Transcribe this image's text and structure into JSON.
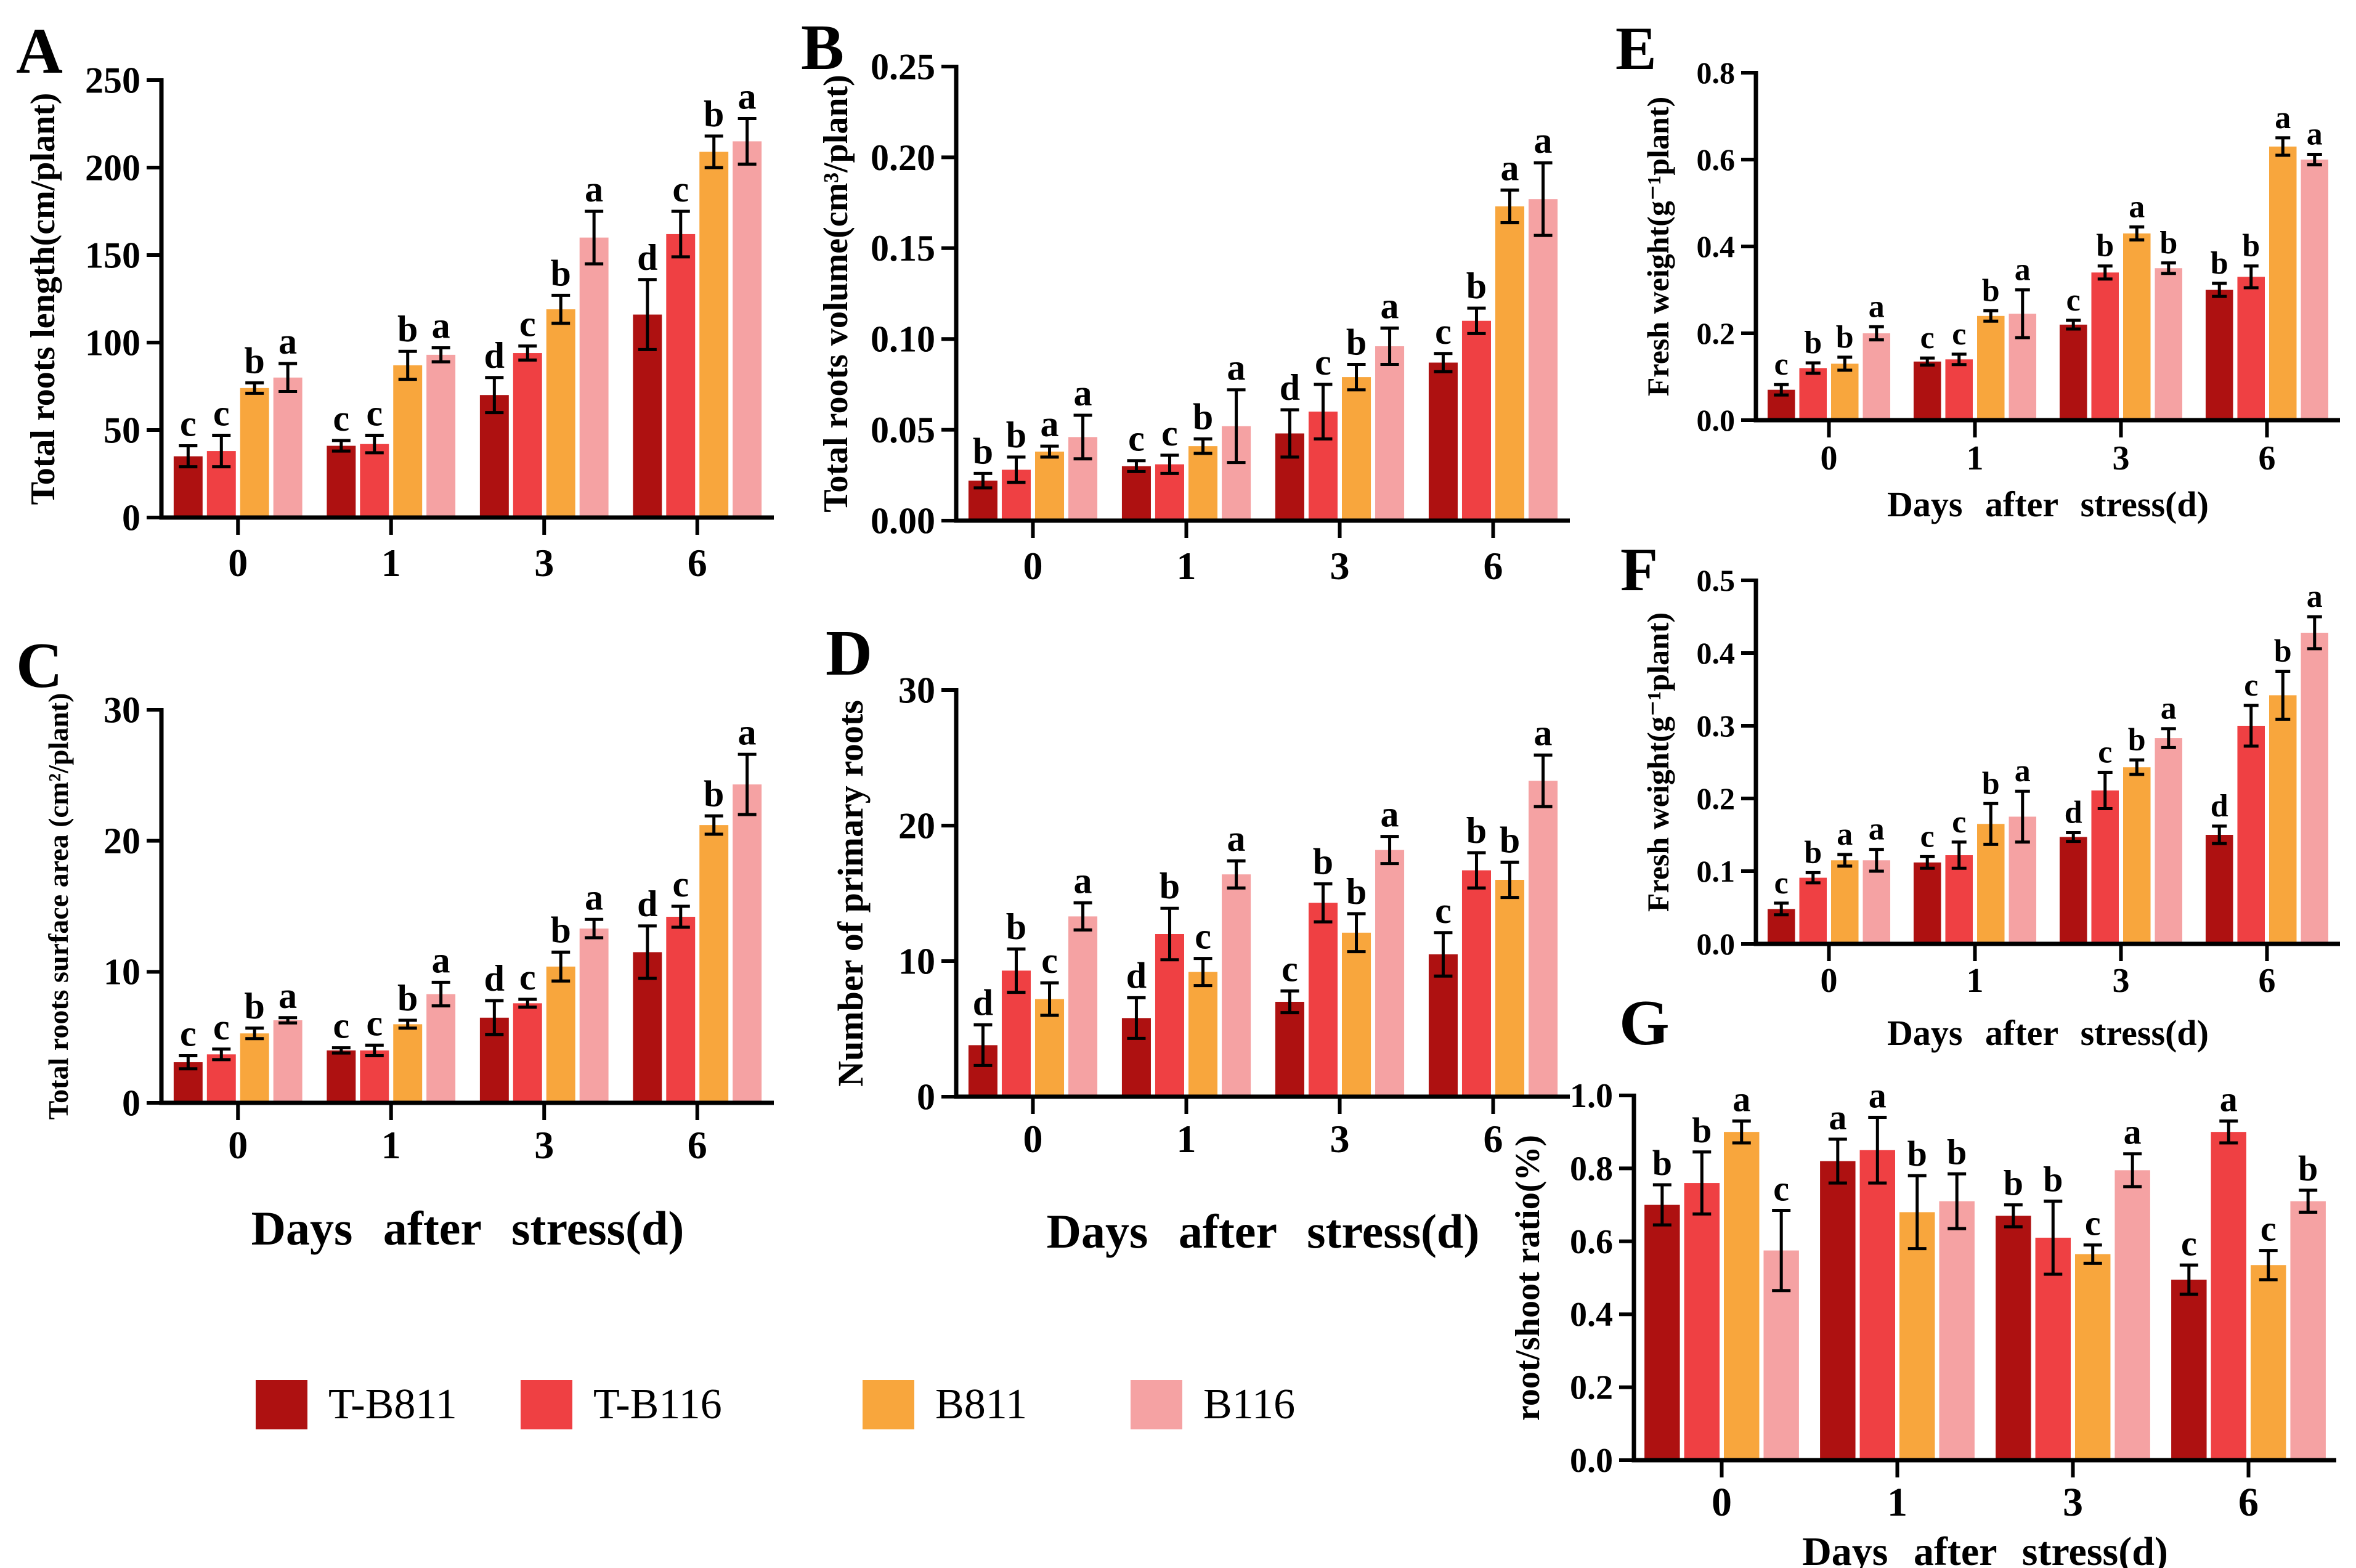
{
  "figure": {
    "x_axis_label": "Days after stress(d)",
    "categories": [
      "0",
      "1",
      "3",
      "6"
    ]
  },
  "legend": {
    "items": [
      {
        "label": "T-B811",
        "color": "#ae1111"
      },
      {
        "label": "T-B116",
        "color": "#ef4043"
      },
      {
        "label": "B811",
        "color": "#f8a63d"
      },
      {
        "label": "B116",
        "color": "#f5a2a3"
      }
    ]
  },
  "chart_data": [
    {
      "panel": "A",
      "type": "bar",
      "ylabel": "Total roots length(cm/plant)",
      "xlabel": "",
      "categories": [
        "0",
        "1",
        "3",
        "6"
      ],
      "ylim": [
        0,
        250
      ],
      "yticks": [
        0,
        50,
        100,
        150,
        200,
        250
      ],
      "ytick_decimals": 0,
      "series": [
        {
          "name": "T-B811",
          "values": [
            35,
            41,
            70,
            116
          ],
          "errors": [
            6,
            3,
            10,
            20
          ],
          "letters": [
            "c",
            "c",
            "d",
            "d"
          ]
        },
        {
          "name": "T-B116",
          "values": [
            38,
            42,
            94,
            162
          ],
          "errors": [
            9,
            5,
            4,
            13
          ],
          "letters": [
            "c",
            "c",
            "c",
            "c"
          ]
        },
        {
          "name": "B811",
          "values": [
            74,
            87,
            119,
            209
          ],
          "errors": [
            3,
            8,
            8,
            9
          ],
          "letters": [
            "b",
            "b",
            "b",
            "b"
          ]
        },
        {
          "name": "B116",
          "values": [
            80,
            93,
            160,
            215
          ],
          "errors": [
            8,
            4,
            15,
            13
          ],
          "letters": [
            "a",
            "a",
            "a",
            "a"
          ]
        }
      ]
    },
    {
      "panel": "B",
      "type": "bar",
      "ylabel": "Total roots volume(cm³/plant)",
      "xlabel": "",
      "categories": [
        "0",
        "1",
        "3",
        "6"
      ],
      "ylim": [
        0,
        0.25
      ],
      "yticks": [
        0,
        0.05,
        0.1,
        0.15,
        0.2,
        0.25
      ],
      "ytick_decimals": 2,
      "series": [
        {
          "name": "T-B811",
          "values": [
            0.022,
            0.03,
            0.048,
            0.087
          ],
          "errors": [
            0.004,
            0.003,
            0.013,
            0.005
          ],
          "letters": [
            "b",
            "c",
            "d",
            "c"
          ]
        },
        {
          "name": "T-B116",
          "values": [
            0.028,
            0.031,
            0.06,
            0.11
          ],
          "errors": [
            0.007,
            0.005,
            0.015,
            0.007
          ],
          "letters": [
            "b",
            "c",
            "c",
            "b"
          ]
        },
        {
          "name": "B811",
          "values": [
            0.038,
            0.041,
            0.079,
            0.173
          ],
          "errors": [
            0.003,
            0.004,
            0.007,
            0.009
          ],
          "letters": [
            "a",
            "b",
            "b",
            "a"
          ]
        },
        {
          "name": "B116",
          "values": [
            0.046,
            0.052,
            0.096,
            0.177
          ],
          "errors": [
            0.012,
            0.02,
            0.01,
            0.02
          ],
          "letters": [
            "a",
            "a",
            "a",
            "a"
          ]
        }
      ]
    },
    {
      "panel": "C",
      "type": "bar",
      "ylabel": "Total roots surface area (cm²/plant)",
      "xlabel": "Days after stress(d)",
      "categories": [
        "0",
        "1",
        "3",
        "6"
      ],
      "ylim": [
        0,
        30
      ],
      "yticks": [
        0,
        10,
        20,
        30
      ],
      "ytick_decimals": 0,
      "series": [
        {
          "name": "T-B811",
          "values": [
            3.1,
            4.0,
            6.5,
            11.5
          ],
          "errors": [
            0.5,
            0.2,
            1.3,
            2.0
          ],
          "letters": [
            "c",
            "c",
            "d",
            "d"
          ]
        },
        {
          "name": "T-B116",
          "values": [
            3.7,
            4.0,
            7.6,
            14.2
          ],
          "errors": [
            0.4,
            0.4,
            0.3,
            0.8
          ],
          "letters": [
            "c",
            "c",
            "c",
            "c"
          ]
        },
        {
          "name": "B811",
          "values": [
            5.3,
            6.0,
            10.4,
            21.2
          ],
          "errors": [
            0.4,
            0.3,
            1.1,
            0.7
          ],
          "letters": [
            "b",
            "b",
            "b",
            "b"
          ]
        },
        {
          "name": "B116",
          "values": [
            6.3,
            8.3,
            13.3,
            24.3
          ],
          "errors": [
            0.2,
            0.9,
            0.7,
            2.3
          ],
          "letters": [
            "a",
            "a",
            "a",
            "a"
          ]
        }
      ]
    },
    {
      "panel": "D",
      "type": "bar",
      "ylabel": "Number of primary roots",
      "xlabel": "Days after stress(d)",
      "categories": [
        "0",
        "1",
        "3",
        "6"
      ],
      "ylim": [
        0,
        30
      ],
      "yticks": [
        0,
        10,
        20,
        30
      ],
      "ytick_decimals": 0,
      "series": [
        {
          "name": "T-B811",
          "values": [
            3.8,
            5.8,
            7.0,
            10.5
          ],
          "errors": [
            1.5,
            1.5,
            0.8,
            1.6
          ],
          "letters": [
            "d",
            "d",
            "c",
            "c"
          ]
        },
        {
          "name": "T-B116",
          "values": [
            9.3,
            12.0,
            14.3,
            16.7
          ],
          "errors": [
            1.6,
            1.9,
            1.4,
            1.3
          ],
          "letters": [
            "b",
            "b",
            "b",
            "b"
          ]
        },
        {
          "name": "B811",
          "values": [
            7.2,
            9.2,
            12.1,
            16.0
          ],
          "errors": [
            1.2,
            1.0,
            1.4,
            1.3
          ],
          "letters": [
            "c",
            "c",
            "b",
            "b"
          ]
        },
        {
          "name": "B116",
          "values": [
            13.3,
            16.4,
            18.2,
            23.3
          ],
          "errors": [
            1.0,
            1.0,
            1.0,
            1.9
          ],
          "letters": [
            "a",
            "a",
            "a",
            "a"
          ]
        }
      ]
    },
    {
      "panel": "E",
      "type": "bar",
      "ylabel": "Fresh weight(g⁻¹plant)",
      "xlabel": "Days after stress(d)",
      "categories": [
        "0",
        "1",
        "3",
        "6"
      ],
      "ylim": [
        0,
        0.8
      ],
      "yticks": [
        0,
        0.2,
        0.4,
        0.6,
        0.8
      ],
      "ytick_decimals": 1,
      "series": [
        {
          "name": "T-B811",
          "values": [
            0.07,
            0.135,
            0.22,
            0.3
          ],
          "errors": [
            0.012,
            0.008,
            0.01,
            0.015
          ],
          "letters": [
            "c",
            "c",
            "c",
            "b"
          ]
        },
        {
          "name": "T-B116",
          "values": [
            0.12,
            0.14,
            0.34,
            0.33
          ],
          "errors": [
            0.012,
            0.012,
            0.015,
            0.025
          ],
          "letters": [
            "b",
            "c",
            "b",
            "b"
          ]
        },
        {
          "name": "B811",
          "values": [
            0.13,
            0.24,
            0.43,
            0.63
          ],
          "errors": [
            0.015,
            0.012,
            0.015,
            0.02
          ],
          "letters": [
            "b",
            "b",
            "a",
            "a"
          ]
        },
        {
          "name": "B116",
          "values": [
            0.2,
            0.245,
            0.35,
            0.6
          ],
          "errors": [
            0.015,
            0.055,
            0.012,
            0.012
          ],
          "letters": [
            "a",
            "a",
            "b",
            "a"
          ]
        }
      ]
    },
    {
      "panel": "F",
      "type": "bar",
      "ylabel": "Fresh weight(g⁻¹plant)",
      "xlabel": "Days after stress(d)",
      "categories": [
        "0",
        "1",
        "3",
        "6"
      ],
      "ylim": [
        0,
        0.5
      ],
      "yticks": [
        0,
        0.1,
        0.2,
        0.3,
        0.4,
        0.5
      ],
      "ytick_decimals": 1,
      "series": [
        {
          "name": "T-B811",
          "values": [
            0.048,
            0.112,
            0.147,
            0.15
          ],
          "errors": [
            0.008,
            0.008,
            0.006,
            0.012
          ],
          "letters": [
            "c",
            "c",
            "d",
            "d"
          ]
        },
        {
          "name": "T-B116",
          "values": [
            0.091,
            0.122,
            0.211,
            0.3
          ],
          "errors": [
            0.007,
            0.018,
            0.025,
            0.028
          ],
          "letters": [
            "b",
            "c",
            "c",
            "c"
          ]
        },
        {
          "name": "B811",
          "values": [
            0.115,
            0.165,
            0.243,
            0.342
          ],
          "errors": [
            0.008,
            0.028,
            0.01,
            0.033
          ],
          "letters": [
            "a",
            "b",
            "b",
            "b"
          ]
        },
        {
          "name": "B116",
          "values": [
            0.115,
            0.175,
            0.283,
            0.428
          ],
          "errors": [
            0.015,
            0.035,
            0.013,
            0.022
          ],
          "letters": [
            "a",
            "a",
            "a",
            "a"
          ]
        }
      ]
    },
    {
      "panel": "G",
      "type": "bar",
      "ylabel": "root/shoot ratio(%)",
      "xlabel": "Days after stress(d)",
      "categories": [
        "0",
        "1",
        "3",
        "6"
      ],
      "ylim": [
        0,
        1.0
      ],
      "yticks": [
        0,
        0.2,
        0.4,
        0.6,
        0.8,
        1.0
      ],
      "ytick_decimals": 1,
      "series": [
        {
          "name": "T-B811",
          "values": [
            0.7,
            0.82,
            0.67,
            0.495
          ],
          "errors": [
            0.055,
            0.06,
            0.03,
            0.04
          ],
          "letters": [
            "b",
            "a",
            "b",
            "c"
          ]
        },
        {
          "name": "T-B116",
          "values": [
            0.76,
            0.85,
            0.61,
            0.9
          ],
          "errors": [
            0.085,
            0.09,
            0.1,
            0.03
          ],
          "letters": [
            "b",
            "a",
            "b",
            "a"
          ]
        },
        {
          "name": "B811",
          "values": [
            0.9,
            0.68,
            0.565,
            0.535
          ],
          "errors": [
            0.03,
            0.1,
            0.025,
            0.04
          ],
          "letters": [
            "a",
            "b",
            "c",
            "c"
          ]
        },
        {
          "name": "B116",
          "values": [
            0.575,
            0.71,
            0.795,
            0.71
          ],
          "errors": [
            0.11,
            0.075,
            0.045,
            0.03
          ],
          "letters": [
            "c",
            "b",
            "a",
            "b"
          ]
        }
      ]
    }
  ]
}
